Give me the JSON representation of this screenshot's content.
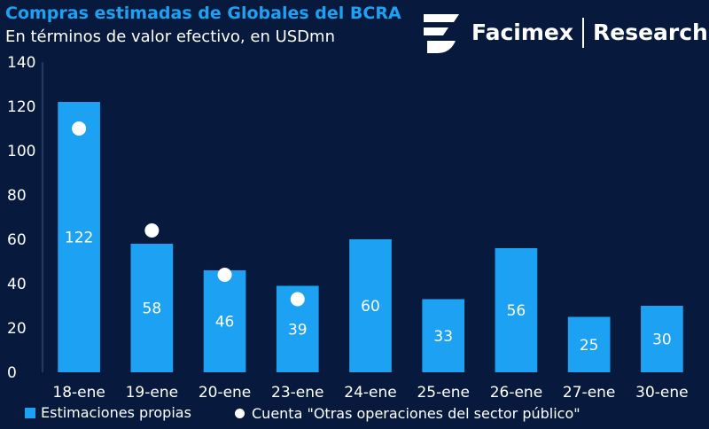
{
  "header": {
    "title": "Compras estimadas de Globales del BCRA",
    "subtitle": "En términos de valor efectivo, en USDmn"
  },
  "brand": {
    "name": "Facimex",
    "division": "Research",
    "logo_icon": "facimex-logo-icon"
  },
  "colors": {
    "background": "#071a3d",
    "bar": "#1da1f2",
    "dot": "#ffffff",
    "title": "#1da1f2"
  },
  "chart_data": {
    "type": "bar",
    "categories": [
      "18-ene",
      "19-ene",
      "20-ene",
      "23-ene",
      "24-ene",
      "25-ene",
      "26-ene",
      "27-ene",
      "30-ene"
    ],
    "series": [
      {
        "name": "Estimaciones propias",
        "type": "bar",
        "values": [
          122,
          58,
          46,
          39,
          60,
          33,
          56,
          25,
          30
        ],
        "data_labels": [
          "122",
          "58",
          "46",
          "39",
          "60",
          "33",
          "56",
          "25",
          "30"
        ]
      },
      {
        "name": "Cuenta \"Otras operaciones del sector público\"",
        "type": "scatter",
        "values": [
          110,
          64,
          44,
          33,
          null,
          null,
          null,
          null,
          null
        ]
      }
    ],
    "ylim": [
      0,
      140
    ],
    "yticks": [
      "0",
      "20",
      "40",
      "60",
      "80",
      "100",
      "120",
      "140"
    ],
    "grid": false,
    "legend_position": "bottom"
  }
}
